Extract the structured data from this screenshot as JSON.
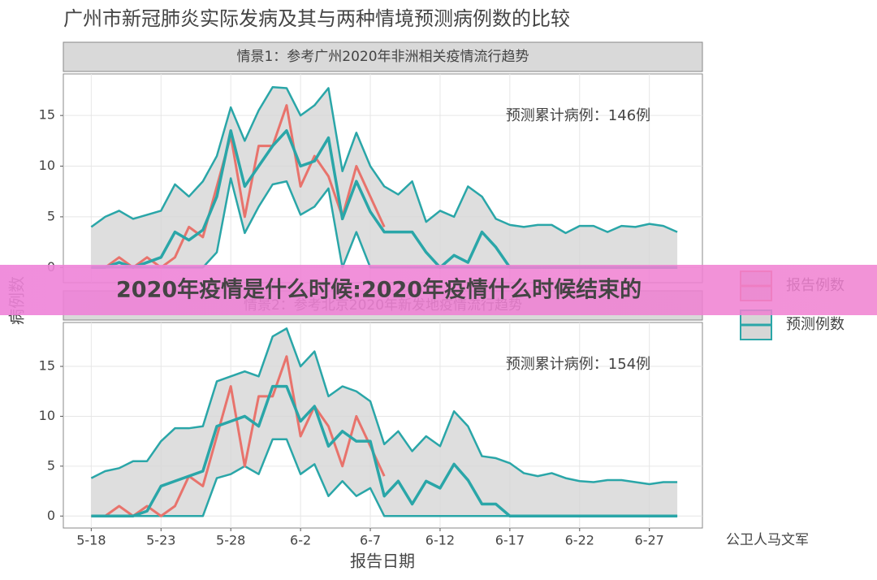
{
  "title": "广州市新冠肺炎实际发病及其与两种情境预测病例数的比较",
  "y_label": "病例数",
  "x_label": "报告日期",
  "banner": "2020年疫情是什么时候:2020年疫情什么时候结束的",
  "watermark": "公卫人马文军",
  "band_color": "#d6d6d6",
  "chart_data": [
    {
      "type": "line",
      "title": "情景1：参考广州2020年非洲相关疫情流行趋势",
      "annotation": "预测累计病例：146例",
      "x": [
        0,
        1,
        2,
        3,
        4,
        5,
        6,
        7,
        8,
        9,
        10,
        11,
        12,
        13,
        14,
        15,
        16,
        17,
        18,
        19,
        20,
        21,
        22,
        23,
        24,
        25,
        26,
        27,
        28,
        29,
        30,
        31,
        32,
        33,
        34,
        35,
        36,
        37,
        38,
        39,
        40,
        41,
        42
      ],
      "xlim": [
        -2,
        43.8
      ],
      "ylim": [
        -1.5,
        19.1
      ],
      "yticks": [
        0,
        5,
        10,
        15
      ],
      "grid": true,
      "series": [
        {
          "name": "报告例数",
          "color": "#e8736c",
          "values": [
            0,
            0,
            1,
            0,
            1,
            0,
            1,
            4,
            3,
            8,
            13,
            5,
            12,
            12,
            16,
            8,
            11,
            9,
            5,
            10,
            7,
            4,
            null,
            null,
            null,
            null,
            null,
            null,
            null,
            null,
            null,
            null,
            null,
            null,
            null,
            null,
            null,
            null,
            null,
            null,
            null,
            null,
            null
          ]
        },
        {
          "name": "预测例数",
          "color": "#2aa6a8",
          "values": [
            0,
            0,
            0.5,
            0,
            0.5,
            1,
            3.5,
            2.7,
            3.7,
            7,
            13.5,
            8,
            10,
            12,
            13.5,
            10,
            10.5,
            12.8,
            4.8,
            8.5,
            5.5,
            3.5,
            3.5,
            3.5,
            1.5,
            0,
            1.2,
            0.5,
            3.5,
            2,
            0,
            0,
            0,
            0,
            0,
            0,
            0,
            0,
            0,
            0,
            0,
            0,
            0
          ],
          "upper": [
            4,
            5,
            5.6,
            4.8,
            5.2,
            5.6,
            8.2,
            7,
            8.5,
            11,
            15.8,
            12.5,
            15.5,
            17.8,
            17.7,
            15,
            16,
            17.7,
            9.5,
            13.3,
            10,
            8,
            7.2,
            8.5,
            4.5,
            5.6,
            5,
            8,
            7,
            4.8,
            4.2,
            4,
            4.2,
            4.2,
            3.4,
            4.1,
            4.1,
            3.5,
            4.1,
            4,
            4.3,
            4.1,
            3.5
          ],
          "lower": [
            0,
            0,
            0,
            0,
            0,
            0,
            0,
            0,
            0,
            1.5,
            8.8,
            3.4,
            6,
            8.2,
            8.5,
            5.2,
            6,
            7.8,
            0,
            3.5,
            0,
            0,
            0,
            0,
            0,
            0,
            0,
            0,
            0,
            0,
            0,
            0,
            0,
            0,
            0,
            0,
            0,
            0,
            0,
            0,
            0,
            0,
            0
          ]
        }
      ]
    },
    {
      "type": "line",
      "title": "情景2：参考北京2020年新发地疫情流行趋势",
      "annotation": "预测累计病例：154例",
      "x": [
        0,
        1,
        2,
        3,
        4,
        5,
        6,
        7,
        8,
        9,
        10,
        11,
        12,
        13,
        14,
        15,
        16,
        17,
        18,
        19,
        20,
        21,
        22,
        23,
        24,
        25,
        26,
        27,
        28,
        29,
        30,
        31,
        32,
        33,
        34,
        35,
        36,
        37,
        38,
        39,
        40,
        41,
        42
      ],
      "xlim": [
        -2,
        43.8
      ],
      "ylim": [
        -1.2,
        19.4
      ],
      "yticks": [
        0,
        5,
        10,
        15
      ],
      "grid": true,
      "xticks": [
        {
          "value": 0,
          "label": "5-18"
        },
        {
          "value": 5,
          "label": "5-23"
        },
        {
          "value": 10,
          "label": "5-28"
        },
        {
          "value": 15,
          "label": "6-2"
        },
        {
          "value": 20,
          "label": "6-7"
        },
        {
          "value": 25,
          "label": "6-12"
        },
        {
          "value": 30,
          "label": "6-17"
        },
        {
          "value": 35,
          "label": "6-22"
        },
        {
          "value": 40,
          "label": "6-27"
        }
      ],
      "series": [
        {
          "color": "#e8736c",
          "values": [
            0,
            0,
            1,
            0,
            1,
            0,
            1,
            4,
            3,
            8,
            13,
            5,
            12,
            12,
            16,
            8,
            11,
            9,
            5,
            10,
            7,
            4,
            null,
            null,
            null,
            null,
            null,
            null,
            null,
            null,
            null,
            null,
            null,
            null,
            null,
            null,
            null,
            null,
            null,
            null,
            null,
            null,
            null
          ]
        },
        {
          "color": "#2aa6a8",
          "values": [
            0,
            0,
            0,
            0,
            0.5,
            3,
            3.5,
            4,
            4.5,
            9,
            9.5,
            10,
            9,
            13,
            13,
            9.5,
            11,
            7,
            8.5,
            7.5,
            7.5,
            2,
            3.5,
            1.2,
            3.5,
            2.8,
            5.2,
            3.6,
            1.2,
            1.2,
            0,
            0,
            0,
            0,
            0,
            0,
            0,
            0,
            0,
            0,
            0,
            0,
            0
          ],
          "upper": [
            3.8,
            4.5,
            4.8,
            5.5,
            5.5,
            7.5,
            8.8,
            8.8,
            9,
            13.5,
            14,
            14.5,
            14,
            18,
            18.8,
            15,
            16.5,
            12,
            13,
            12.5,
            11.5,
            7.2,
            8.5,
            6.5,
            8,
            7,
            10.5,
            9,
            6,
            5.8,
            5.3,
            4.3,
            4,
            4.3,
            3.8,
            3.5,
            3.4,
            3.6,
            3.6,
            3.4,
            3.2,
            3.4,
            3.4
          ],
          "lower": [
            0,
            0,
            0,
            0,
            0,
            0,
            0,
            0,
            0,
            3.8,
            4.2,
            5,
            4.2,
            7.7,
            7.7,
            4.2,
            5.2,
            2,
            3.5,
            2,
            2.8,
            0,
            0,
            0,
            0,
            0,
            0,
            0,
            0,
            0,
            0,
            0,
            0,
            0,
            0,
            0,
            0,
            0,
            0,
            0,
            0,
            0,
            0
          ]
        }
      ]
    }
  ]
}
